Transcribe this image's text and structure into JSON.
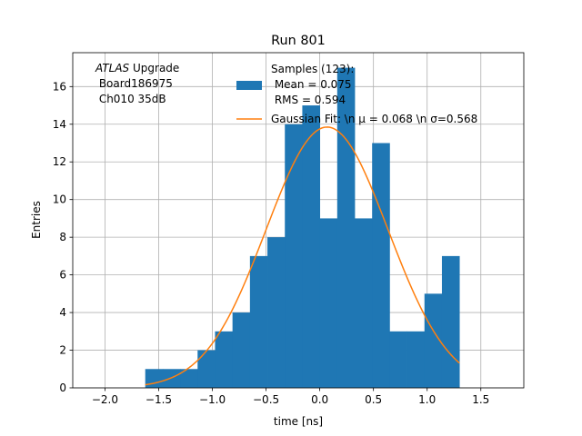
{
  "chart_data": {
    "type": "bar",
    "title": "Run 801",
    "xlabel": "time [ns]",
    "ylabel": "Entries",
    "xlim": [
      -2.3,
      1.9
    ],
    "ylim": [
      0,
      17.8
    ],
    "xticks": [
      -2.0,
      -1.5,
      -1.0,
      -0.5,
      0.0,
      0.5,
      1.0,
      1.5
    ],
    "xtick_labels": [
      "−2.0",
      "−1.5",
      "−1.0",
      "−0.5",
      "0.0",
      "0.5",
      "1.0",
      "1.5"
    ],
    "yticks": [
      0,
      2,
      4,
      6,
      8,
      10,
      12,
      14,
      16
    ],
    "ytick_labels": [
      "0",
      "2",
      "4",
      "6",
      "8",
      "10",
      "12",
      "14",
      "16"
    ],
    "grid": true,
    "annotation": {
      "italic_part": "ATLAS",
      "rest_line1": " Upgrade",
      "line2": " Board186975",
      "line3": " Ch010 35dB"
    },
    "legend": {
      "placement": "top-right",
      "hist_lines": [
        "Samples (123):",
        " Mean = 0.075",
        " RMS = 0.594"
      ],
      "fit_label": "Gaussian Fit: \\n μ = 0.068 \\n σ=0.568"
    },
    "histogram": {
      "bin_edges": [
        -1.625,
        -1.4625,
        -1.3,
        -1.1375,
        -0.975,
        -0.8125,
        -0.65,
        -0.4875,
        -0.325,
        -0.1625,
        0.0,
        0.1625,
        0.325,
        0.4875,
        0.65,
        0.8125,
        0.975,
        1.1375,
        1.3
      ],
      "counts": [
        1,
        1,
        1,
        2,
        3,
        4,
        7,
        8,
        14,
        15,
        9,
        17,
        9,
        13,
        3,
        3,
        5,
        7
      ],
      "color": "#1f77b4"
    },
    "fit": {
      "amplitude": 13.85,
      "mu": 0.068,
      "sigma": 0.568,
      "x_range": [
        -1.625,
        1.3
      ],
      "color": "#ff7f0e"
    }
  }
}
